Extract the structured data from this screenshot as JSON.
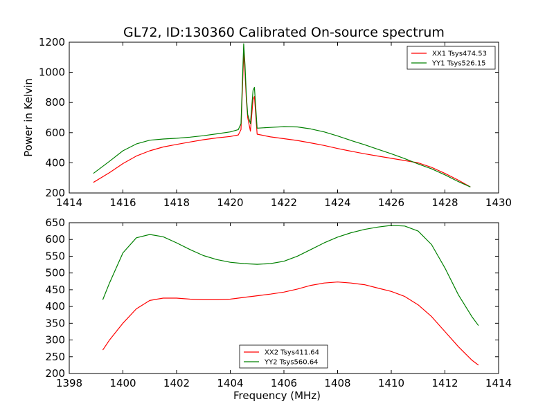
{
  "figure": {
    "title": "GL72, ID:130360 Calibrated On-source spectrum",
    "shared_xlabel": "Frequency (MHz)"
  },
  "chart_data": [
    {
      "type": "line",
      "title": "",
      "xlabel": "",
      "ylabel": "Power in Kelvin",
      "xlim": [
        1414,
        1430
      ],
      "ylim": [
        200,
        1200
      ],
      "xticks": [
        1414,
        1416,
        1418,
        1420,
        1422,
        1424,
        1426,
        1428,
        1430
      ],
      "yticks": [
        200,
        400,
        600,
        800,
        1000,
        1200
      ],
      "legend": "top-right",
      "series": [
        {
          "name": "XX1 Tsys474.53",
          "color": "#ff0000",
          "x": [
            1414.9,
            1415.5,
            1416,
            1416.5,
            1417,
            1417.5,
            1418,
            1418.5,
            1419,
            1419.5,
            1420,
            1420.3,
            1420.4,
            1420.5,
            1420.55,
            1420.6,
            1420.65,
            1420.75,
            1420.85,
            1420.9,
            1421,
            1421.5,
            1422,
            1422.5,
            1423,
            1423.5,
            1424,
            1424.5,
            1425,
            1425.5,
            1426,
            1426.5,
            1427,
            1427.5,
            1428,
            1428.5,
            1428.95
          ],
          "y": [
            270,
            335,
            395,
            445,
            480,
            505,
            522,
            538,
            553,
            565,
            575,
            585,
            620,
            1130,
            1000,
            820,
            700,
            610,
            820,
            840,
            590,
            572,
            560,
            548,
            532,
            515,
            495,
            477,
            460,
            445,
            430,
            415,
            400,
            370,
            330,
            285,
            240
          ]
        },
        {
          "name": "YY1 Tsys526.15",
          "color": "#008000",
          "x": [
            1414.9,
            1415.5,
            1416,
            1416.5,
            1417,
            1417.5,
            1418,
            1418.5,
            1419,
            1419.5,
            1420,
            1420.3,
            1420.4,
            1420.5,
            1420.55,
            1420.6,
            1420.65,
            1420.75,
            1420.85,
            1420.9,
            1421,
            1421.5,
            1422,
            1422.5,
            1423,
            1423.5,
            1424,
            1424.5,
            1425,
            1425.5,
            1426,
            1426.5,
            1427,
            1427.5,
            1428,
            1428.5,
            1428.95
          ],
          "y": [
            330,
            410,
            480,
            525,
            550,
            558,
            563,
            570,
            580,
            592,
            605,
            620,
            660,
            1190,
            1050,
            850,
            720,
            660,
            880,
            900,
            630,
            635,
            640,
            638,
            625,
            605,
            578,
            548,
            520,
            490,
            460,
            428,
            392,
            360,
            320,
            275,
            240
          ]
        }
      ]
    },
    {
      "type": "line",
      "title": "",
      "xlabel": "Frequency (MHz)",
      "ylabel": "",
      "xlim": [
        1398,
        1414
      ],
      "ylim": [
        200,
        650
      ],
      "xticks": [
        1398,
        1400,
        1402,
        1404,
        1406,
        1408,
        1410,
        1412,
        1414
      ],
      "yticks": [
        200,
        250,
        300,
        350,
        400,
        450,
        500,
        550,
        600,
        650
      ],
      "legend": "bottom-center",
      "series": [
        {
          "name": "XX2 Tsys411.64",
          "color": "#ff0000",
          "x": [
            1399.25,
            1399.5,
            1400,
            1400.5,
            1401,
            1401.5,
            1402,
            1402.5,
            1403,
            1403.5,
            1404,
            1404.5,
            1405,
            1405.5,
            1406,
            1406.5,
            1407,
            1407.5,
            1408,
            1408.5,
            1409,
            1409.5,
            1410,
            1410.5,
            1411,
            1411.5,
            1412,
            1412.5,
            1413,
            1413.25
          ],
          "y": [
            270,
            300,
            350,
            393,
            418,
            425,
            425,
            422,
            420,
            420,
            422,
            427,
            432,
            437,
            443,
            452,
            463,
            470,
            473,
            470,
            465,
            455,
            445,
            430,
            405,
            370,
            325,
            280,
            240,
            225
          ]
        },
        {
          "name": "YY2 Tsys560.64",
          "color": "#008000",
          "x": [
            1399.25,
            1399.5,
            1400,
            1400.5,
            1401,
            1401.5,
            1402,
            1402.5,
            1403,
            1403.5,
            1404,
            1404.5,
            1405,
            1405.5,
            1406,
            1406.5,
            1407,
            1407.5,
            1408,
            1408.5,
            1409,
            1409.5,
            1410,
            1410.5,
            1411,
            1411.5,
            1412,
            1412.5,
            1413,
            1413.25
          ],
          "y": [
            420,
            470,
            560,
            605,
            615,
            608,
            590,
            570,
            552,
            540,
            532,
            528,
            526,
            528,
            535,
            550,
            570,
            590,
            607,
            620,
            630,
            637,
            642,
            640,
            625,
            585,
            515,
            435,
            370,
            343
          ]
        }
      ]
    }
  ]
}
